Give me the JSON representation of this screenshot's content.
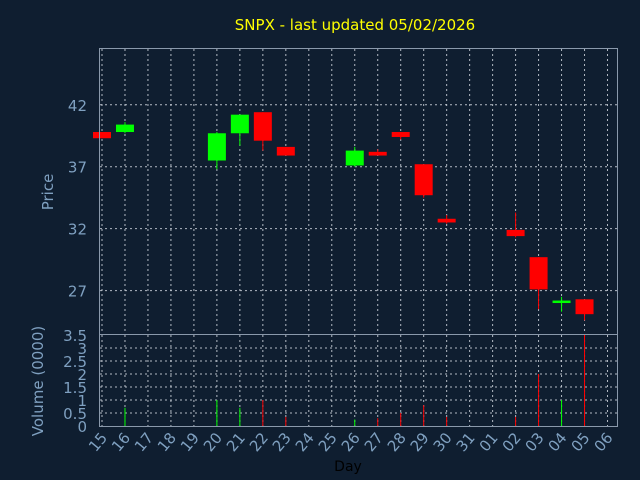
{
  "chart_data": [
    {
      "type": "candlestick",
      "title": "SNPX - last updated 05/02/2026",
      "ylabel": "Price",
      "ylim": [
        23.5,
        46.5
      ],
      "yticks": [
        27,
        32,
        37,
        42
      ],
      "grid": true,
      "up_color": "#00ff00",
      "down_color": "#ff0000",
      "categories": [
        "15",
        "16",
        "17",
        "18",
        "19",
        "20",
        "21",
        "22",
        "23",
        "24",
        "25",
        "26",
        "27",
        "28",
        "29",
        "30",
        "31",
        "01",
        "02",
        "03",
        "04",
        "05",
        "06"
      ],
      "candles": [
        {
          "day": "15",
          "open": 39.8,
          "high": 39.8,
          "low": 39.3,
          "close": 39.3
        },
        {
          "day": "16",
          "open": 39.8,
          "high": 40.6,
          "low": 39.7,
          "close": 40.4
        },
        {
          "day": "20",
          "open": 37.5,
          "high": 39.8,
          "low": 36.8,
          "close": 39.7
        },
        {
          "day": "21",
          "open": 39.7,
          "high": 41.2,
          "low": 38.7,
          "close": 41.2
        },
        {
          "day": "22",
          "open": 41.4,
          "high": 41.4,
          "low": 38.3,
          "close": 39.1
        },
        {
          "day": "23",
          "open": 38.6,
          "high": 38.6,
          "low": 37.9,
          "close": 37.9
        },
        {
          "day": "26",
          "open": 37.1,
          "high": 38.6,
          "low": 37.0,
          "close": 38.3
        },
        {
          "day": "27",
          "open": 38.2,
          "high": 38.4,
          "low": 37.9,
          "close": 37.9
        },
        {
          "day": "28",
          "open": 39.8,
          "high": 39.8,
          "low": 39.2,
          "close": 39.4
        },
        {
          "day": "29",
          "open": 37.2,
          "high": 37.2,
          "low": 34.5,
          "close": 34.7
        },
        {
          "day": "30",
          "open": 32.8,
          "high": 33.1,
          "low": 32.4,
          "close": 32.5
        },
        {
          "day": "02",
          "open": 31.9,
          "high": 33.3,
          "low": 31.3,
          "close": 31.4
        },
        {
          "day": "03",
          "open": 29.7,
          "high": 29.7,
          "low": 25.5,
          "close": 27.1
        },
        {
          "day": "04",
          "open": 26.0,
          "high": 26.5,
          "low": 25.3,
          "close": 26.2
        },
        {
          "day": "05",
          "open": 26.3,
          "high": 26.3,
          "low": 24.6,
          "close": 25.1
        }
      ]
    },
    {
      "type": "bar",
      "ylabel": "Volume (0000)",
      "xlabel": "Day",
      "ylim": [
        0,
        3.5
      ],
      "yticks": [
        "0",
        "0.5",
        "1",
        "1.5",
        "2",
        "2.5",
        "3",
        "3.5"
      ],
      "grid": true,
      "volumes": [
        {
          "day": "16",
          "value": 0.7,
          "direction": "up"
        },
        {
          "day": "20",
          "value": 1.0,
          "direction": "up"
        },
        {
          "day": "21",
          "value": 0.7,
          "direction": "up"
        },
        {
          "day": "22",
          "value": 1.0,
          "direction": "down"
        },
        {
          "day": "23",
          "value": 0.35,
          "direction": "down"
        },
        {
          "day": "26",
          "value": 0.25,
          "direction": "up"
        },
        {
          "day": "27",
          "value": 0.3,
          "direction": "down"
        },
        {
          "day": "28",
          "value": 0.5,
          "direction": "down"
        },
        {
          "day": "29",
          "value": 0.8,
          "direction": "down"
        },
        {
          "day": "30",
          "value": 0.35,
          "direction": "down"
        },
        {
          "day": "02",
          "value": 0.35,
          "direction": "down"
        },
        {
          "day": "03",
          "value": 2.0,
          "direction": "down"
        },
        {
          "day": "04",
          "value": 1.0,
          "direction": "up"
        },
        {
          "day": "05",
          "value": 3.5,
          "direction": "down"
        }
      ]
    }
  ]
}
